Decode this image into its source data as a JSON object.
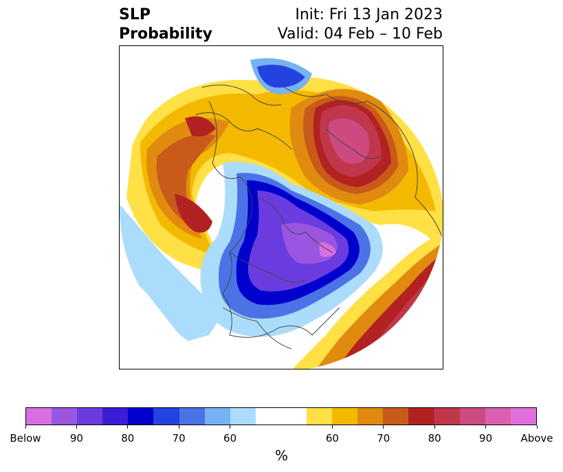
{
  "title": {
    "left_line1": "SLP",
    "left_line2": "Probability",
    "init": "Init: Fri 13 Jan 2023",
    "valid": "Valid: 04 Feb – 10 Feb"
  },
  "colorbar": {
    "unit": "%",
    "colors": [
      "#d670e0",
      "#9a56e0",
      "#6a3ce0",
      "#3a1ed6",
      "#0000cc",
      "#2342e0",
      "#4b72e6",
      "#77b2f2",
      "#acdcfb",
      "#ffffff",
      "#ffe045",
      "#f3b800",
      "#e08a10",
      "#c85a1a",
      "#b22222",
      "#c0364a",
      "#cc4a80",
      "#db5fb0",
      "#e070dc"
    ],
    "ticks": [
      {
        "label": "Below",
        "index": 0
      },
      {
        "label": "90",
        "index": 2
      },
      {
        "label": "80",
        "index": 4
      },
      {
        "label": "70",
        "index": 6
      },
      {
        "label": "60",
        "index": 8
      },
      {
        "label": "60",
        "index": 11
      },
      {
        "label": "70",
        "index": 13
      },
      {
        "label": "80",
        "index": 15
      },
      {
        "label": "90",
        "index": 17
      },
      {
        "label": "Above",
        "index": 19
      }
    ]
  }
}
